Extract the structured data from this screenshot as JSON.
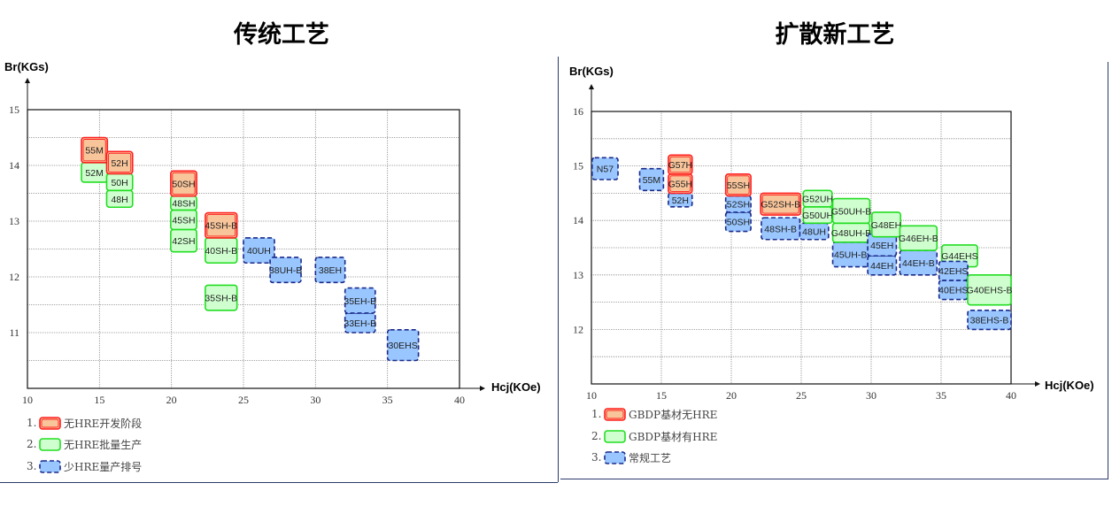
{
  "styles": {
    "dev": {
      "fill": "#f8c49a",
      "stroke": "#ff2020",
      "dash": "",
      "double": true
    },
    "prod": {
      "fill": "#cfffcf",
      "stroke": "#22dd22",
      "dash": "",
      "double": false
    },
    "std": {
      "fill": "#99c6ff",
      "stroke": "#1a2a8a",
      "dash": "5,3",
      "double": false
    }
  },
  "chart_data": [
    {
      "type": "box-region",
      "title": "传统工艺",
      "xlabel": "Hcj(KOe)",
      "ylabel": "Br(KGs)",
      "xlim": [
        10,
        40
      ],
      "ylim": [
        10,
        15
      ],
      "xticks": [
        10,
        15,
        20,
        25,
        30,
        35,
        40
      ],
      "yticks": [
        11,
        12,
        13,
        14,
        15
      ],
      "grid": true,
      "legend": [
        {
          "num": "1.",
          "style": "dev",
          "label": "无HRE开发阶段"
        },
        {
          "num": "2.",
          "style": "prod",
          "label": "无HRE批量生产"
        },
        {
          "num": "3.",
          "style": "std",
          "label": "少HRE量产排号"
        }
      ],
      "boxes": [
        {
          "label": "52M",
          "style": "prod",
          "x": [
            13.75,
            15.55
          ],
          "y": [
            13.7,
            14.05
          ]
        },
        {
          "label": "55M",
          "style": "dev",
          "x": [
            13.75,
            15.55
          ],
          "y": [
            14.05,
            14.5
          ]
        },
        {
          "label": "48H",
          "style": "prod",
          "x": [
            15.5,
            17.3
          ],
          "y": [
            13.25,
            13.55
          ]
        },
        {
          "label": "50H",
          "style": "prod",
          "x": [
            15.5,
            17.3
          ],
          "y": [
            13.55,
            13.85
          ]
        },
        {
          "label": "52H",
          "style": "dev",
          "x": [
            15.5,
            17.3
          ],
          "y": [
            13.85,
            14.25
          ]
        },
        {
          "label": "42SH",
          "style": "prod",
          "x": [
            19.95,
            21.75
          ],
          "y": [
            12.45,
            12.85
          ]
        },
        {
          "label": "45SH",
          "style": "prod",
          "x": [
            19.95,
            21.75
          ],
          "y": [
            12.85,
            13.2
          ]
        },
        {
          "label": "48SH",
          "style": "prod",
          "x": [
            19.95,
            21.75
          ],
          "y": [
            13.2,
            13.45
          ]
        },
        {
          "label": "50SH",
          "style": "dev",
          "x": [
            19.95,
            21.75
          ],
          "y": [
            13.45,
            13.9
          ]
        },
        {
          "label": "40SH-B",
          "style": "prod",
          "x": [
            22.35,
            24.55
          ],
          "y": [
            12.25,
            12.7
          ]
        },
        {
          "label": "45SH-B",
          "style": "dev",
          "x": [
            22.35,
            24.55
          ],
          "y": [
            12.7,
            13.15
          ]
        },
        {
          "label": "35SH-B",
          "style": "prod",
          "x": [
            22.35,
            24.55
          ],
          "y": [
            11.4,
            11.85
          ]
        },
        {
          "label": "40UH",
          "style": "std",
          "x": [
            25.0,
            27.15
          ],
          "y": [
            12.25,
            12.7
          ]
        },
        {
          "label": "38UH-B",
          "style": "std",
          "x": [
            26.85,
            29.0
          ],
          "y": [
            11.9,
            12.35
          ]
        },
        {
          "label": "38EH",
          "style": "std",
          "x": [
            30.0,
            32.05
          ],
          "y": [
            11.9,
            12.35
          ]
        },
        {
          "label": "33EH-B",
          "style": "std",
          "x": [
            32.05,
            34.15
          ],
          "y": [
            11.0,
            11.35
          ]
        },
        {
          "label": "35EH-B",
          "style": "std",
          "x": [
            32.05,
            34.15
          ],
          "y": [
            11.35,
            11.8
          ]
        },
        {
          "label": "30EHS",
          "style": "std",
          "x": [
            35.0,
            37.15
          ],
          "y": [
            10.5,
            11.05
          ]
        }
      ]
    },
    {
      "type": "box-region",
      "title": "扩散新工艺",
      "xlabel": "Hcj(KOe)",
      "ylabel": "Br(KGs)",
      "xlim": [
        10,
        40
      ],
      "ylim": [
        11,
        16
      ],
      "xticks": [
        10,
        15,
        20,
        25,
        30,
        35,
        40
      ],
      "yticks": [
        12,
        13,
        14,
        15,
        16
      ],
      "grid": true,
      "legend": [
        {
          "num": "1.",
          "style": "dev",
          "label": "GBDP基材无HRE"
        },
        {
          "num": "2.",
          "style": "prod",
          "label": "GBDP基材有HRE"
        },
        {
          "num": "3.",
          "style": "std",
          "label": "常规工艺"
        }
      ],
      "boxes": [
        {
          "label": "N57",
          "style": "std",
          "x": [
            10.05,
            11.9
          ],
          "y": [
            14.75,
            15.15
          ]
        },
        {
          "label": "55M",
          "style": "std",
          "x": [
            13.45,
            15.15
          ],
          "y": [
            14.55,
            14.95
          ]
        },
        {
          "label": "52H",
          "style": "std",
          "x": [
            15.5,
            17.2
          ],
          "y": [
            14.25,
            14.5
          ]
        },
        {
          "label": "G55H",
          "style": "dev",
          "x": [
            15.5,
            17.2
          ],
          "y": [
            14.5,
            14.85
          ]
        },
        {
          "label": "G57H",
          "style": "dev",
          "x": [
            15.5,
            17.2
          ],
          "y": [
            14.85,
            15.2
          ]
        },
        {
          "label": "50SH",
          "style": "std",
          "x": [
            19.6,
            21.4
          ],
          "y": [
            13.8,
            14.15
          ]
        },
        {
          "label": "52SH",
          "style": "std",
          "x": [
            19.6,
            21.4
          ],
          "y": [
            14.15,
            14.45
          ]
        },
        {
          "label": "55SH",
          "style": "dev",
          "x": [
            19.6,
            21.4
          ],
          "y": [
            14.45,
            14.85
          ]
        },
        {
          "label": "G52SH-B",
          "style": "dev",
          "x": [
            22.1,
            24.95
          ],
          "y": [
            14.1,
            14.5
          ]
        },
        {
          "label": "48SH-B",
          "style": "std",
          "x": [
            22.15,
            24.9
          ],
          "y": [
            13.65,
            14.05
          ]
        },
        {
          "label": "48UH",
          "style": "std",
          "x": [
            24.9,
            26.95
          ],
          "y": [
            13.65,
            13.95
          ]
        },
        {
          "label": "G50UH",
          "style": "prod",
          "x": [
            25.15,
            27.2
          ],
          "y": [
            13.95,
            14.25
          ]
        },
        {
          "label": "G52UH",
          "style": "prod",
          "x": [
            25.15,
            27.2
          ],
          "y": [
            14.25,
            14.55
          ]
        },
        {
          "label": "45UH-B",
          "style": "std",
          "x": [
            27.25,
            29.8
          ],
          "y": [
            13.15,
            13.6
          ]
        },
        {
          "label": "G48UH-B",
          "style": "prod",
          "x": [
            27.25,
            29.9
          ],
          "y": [
            13.6,
            13.95
          ]
        },
        {
          "label": "G50UH-B",
          "style": "prod",
          "x": [
            27.25,
            29.9
          ],
          "y": [
            13.95,
            14.4
          ]
        },
        {
          "label": "44EH",
          "style": "std",
          "x": [
            29.75,
            31.8
          ],
          "y": [
            13.0,
            13.35
          ]
        },
        {
          "label": "45EH",
          "style": "std",
          "x": [
            29.75,
            31.8
          ],
          "y": [
            13.35,
            13.75
          ]
        },
        {
          "label": "G48EH",
          "style": "prod",
          "x": [
            30.05,
            32.1
          ],
          "y": [
            13.7,
            14.15
          ]
        },
        {
          "label": "44EH-B",
          "style": "std",
          "x": [
            32.05,
            34.7
          ],
          "y": [
            13.0,
            13.45
          ]
        },
        {
          "label": "G46EH-B",
          "style": "prod",
          "x": [
            32.05,
            34.7
          ],
          "y": [
            13.45,
            13.9
          ]
        },
        {
          "label": "G44EHS",
          "style": "prod",
          "x": [
            35.05,
            37.6
          ],
          "y": [
            13.15,
            13.55
          ]
        },
        {
          "label": "40EHS",
          "style": "std",
          "x": [
            34.85,
            36.9
          ],
          "y": [
            12.55,
            12.9
          ]
        },
        {
          "label": "42EHS",
          "style": "std",
          "x": [
            34.85,
            36.9
          ],
          "y": [
            12.9,
            13.25
          ]
        },
        {
          "label": "G40EHS-B",
          "style": "prod",
          "x": [
            36.9,
            40.0
          ],
          "y": [
            12.45,
            13.0
          ]
        },
        {
          "label": "38EHS-B",
          "style": "std",
          "x": [
            36.9,
            40.0
          ],
          "y": [
            12.0,
            12.35
          ]
        }
      ]
    }
  ]
}
